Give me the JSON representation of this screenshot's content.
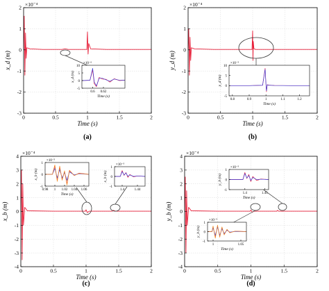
{
  "figure": {
    "colors": {
      "axis": "#000000",
      "grid": "#d9d9d9",
      "series_red": "#e8203a",
      "series_blue": "#3a3ad8",
      "series_orange": "#f08a24",
      "ellipse": "#333333"
    }
  },
  "chart_data": [
    {
      "type": "line",
      "panel_label": "(a)",
      "title": "",
      "xlabel": "Time (s)",
      "ylabel": "x_d (m)",
      "exponent": "×10⁻⁴",
      "xlim": [
        0,
        2
      ],
      "ylim": [
        -3,
        2
      ],
      "xticks": [
        "0",
        "0.5",
        "1",
        "1.5",
        "2"
      ],
      "yticks": [
        "-3",
        "-2",
        "-1",
        "0",
        "1",
        "2"
      ],
      "grid": true,
      "series": [
        {
          "color": "red",
          "x": [
            0,
            0.01,
            0.02,
            0.03,
            0.04,
            0.05,
            0.1,
            0.3,
            0.6,
            0.65,
            0.7,
            0.99,
            1.0,
            1.01,
            1.02,
            1.05,
            1.3,
            1.5,
            1.8,
            2.0
          ],
          "y": [
            0,
            1.6,
            -1.2,
            0.8,
            -0.4,
            0.1,
            0.05,
            0.02,
            0.02,
            0.05,
            0.02,
            0.02,
            0.85,
            -0.2,
            0.3,
            0.05,
            0.02,
            0.02,
            0.02,
            0.02
          ]
        }
      ],
      "inset": {
        "exponent": "×10⁻⁶",
        "ylabel": "x_d (m)",
        "xlabel": "Time (s)",
        "xlim": [
          0.58,
          0.66
        ],
        "ylim": [
          -5,
          10
        ],
        "xticks": [
          "0.6",
          "0.62"
        ],
        "yticks": [
          "-5",
          "0",
          "5",
          "10"
        ],
        "series": [
          {
            "color": "red",
            "x": [
              0.58,
              0.595,
              0.6,
              0.603,
              0.607,
              0.612,
              0.618,
              0.625,
              0.632,
              0.64,
              0.65,
              0.66
            ],
            "y": [
              0,
              0.2,
              7,
              -2,
              -4,
              2,
              1,
              0.8,
              -1,
              1.2,
              0,
              0.3
            ]
          },
          {
            "color": "blue",
            "x": [
              0.58,
              0.595,
              0.6,
              0.603,
              0.607,
              0.612,
              0.618,
              0.625,
              0.632,
              0.64,
              0.65,
              0.66
            ],
            "y": [
              0,
              0.2,
              8,
              -1,
              -3.5,
              1.5,
              1.5,
              0.5,
              -0.5,
              1,
              0.2,
              0.3
            ]
          }
        ]
      }
    },
    {
      "type": "line",
      "panel_label": "(b)",
      "title": "",
      "xlabel": "Time (s)",
      "ylabel": "y_d (m)",
      "exponent": "×10⁻⁴",
      "xlim": [
        0,
        2
      ],
      "ylim": [
        -3,
        2
      ],
      "xticks": [
        "0",
        "0.5",
        "1",
        "1.5",
        "2"
      ],
      "yticks": [
        "-3",
        "-2",
        "-1",
        "0",
        "1",
        "2"
      ],
      "grid": true,
      "series": [
        {
          "color": "red",
          "x": [
            0,
            0.01,
            0.02,
            0.03,
            0.04,
            0.05,
            0.1,
            0.4,
            0.8,
            0.99,
            1.0,
            1.005,
            1.01,
            1.02,
            1.05,
            1.3,
            1.7,
            2.0
          ],
          "y": [
            0,
            1.0,
            -1.2,
            0.6,
            -0.5,
            0.1,
            0.05,
            0.02,
            0.02,
            0.02,
            0.9,
            -0.5,
            0.4,
            0.05,
            0.02,
            0.02,
            0.02,
            0.02
          ]
        }
      ],
      "inset": {
        "exponent": "×10⁻⁵",
        "ylabel": "y_d (m)",
        "xlabel": "Time (s)",
        "xlim": [
          0.78,
          1.26
        ],
        "ylim": [
          -5,
          10
        ],
        "xticks": [
          "0.8",
          "0.9",
          "1",
          "1.1",
          "1.2"
        ],
        "yticks": [
          "-5",
          "0",
          "5",
          "10"
        ],
        "series": [
          {
            "color": "red",
            "x": [
              0.78,
              0.9,
              0.98,
              0.995,
              1.0,
              1.003,
              1.008,
              1.015,
              1.05,
              1.15,
              1.26
            ],
            "y": [
              0,
              0,
              0.2,
              8.5,
              1,
              -3,
              0.5,
              0.3,
              0.1,
              0,
              0
            ]
          },
          {
            "color": "blue",
            "x": [
              0.78,
              0.9,
              0.98,
              0.995,
              1.0,
              1.003,
              1.008,
              1.015,
              1.05,
              1.15,
              1.26
            ],
            "y": [
              0,
              0,
              0.2,
              8,
              0.8,
              -2.5,
              0.4,
              0.2,
              0.1,
              0,
              0
            ]
          }
        ]
      }
    },
    {
      "type": "line",
      "panel_label": "(c)",
      "title": "",
      "xlabel": "Time (s)",
      "ylabel": "x_b (m)",
      "exponent": "×10⁻⁴",
      "xlim": [
        0,
        2
      ],
      "ylim": [
        -4,
        4
      ],
      "xticks": [
        "0",
        "0.5",
        "1",
        "1.5",
        "2"
      ],
      "yticks": [
        "-4",
        "-3",
        "-2",
        "-1",
        "0",
        "1",
        "2",
        "3",
        "4"
      ],
      "grid": true,
      "series": [
        {
          "color": "red",
          "x": [
            0,
            0.01,
            0.02,
            0.03,
            0.04,
            0.06,
            0.1,
            0.5,
            0.99,
            1.0,
            1.02,
            1.05,
            1.2,
            1.4,
            1.42,
            1.45,
            1.7,
            2.0
          ],
          "y": [
            0,
            3.0,
            -3.5,
            2.0,
            -1.0,
            0.3,
            0.05,
            0.02,
            0.02,
            0.12,
            -0.08,
            0.02,
            0.02,
            0.02,
            0.08,
            0.02,
            0.02,
            0.02
          ]
        }
      ],
      "inset": {
        "exponent": "×10⁻⁵",
        "ylabel": "x_b (m)",
        "xlabel": "Time (s)",
        "xlim": [
          0.98,
          1.07
        ],
        "ylim": [
          -1,
          1
        ],
        "xticks": [
          "0.98",
          "1",
          "1.02",
          "1.04",
          "1.06"
        ],
        "yticks": [
          "-1",
          "0",
          "1"
        ],
        "series": [
          {
            "color": "red",
            "x": [
              0.98,
              0.995,
              1.0,
              1.005,
              1.01,
              1.015,
              1.02,
              1.025,
              1.03,
              1.04,
              1.05,
              1.07
            ],
            "y": [
              0,
              0,
              0.7,
              -0.5,
              0.6,
              -0.4,
              0.2,
              -0.8,
              0.3,
              -0.1,
              0.1,
              0
            ]
          },
          {
            "color": "blue",
            "x": [
              0.98,
              0.995,
              1.0,
              1.005,
              1.01,
              1.015,
              1.02,
              1.025,
              1.03,
              1.04,
              1.05,
              1.07
            ],
            "y": [
              0,
              0,
              0.5,
              -0.3,
              0.4,
              -0.3,
              0.15,
              -0.5,
              0.2,
              -0.05,
              0.05,
              0
            ]
          },
          {
            "color": "orange",
            "x": [
              0.98,
              0.995,
              1.0,
              1.005,
              1.01,
              1.015,
              1.02,
              1.025,
              1.03,
              1.04,
              1.05,
              1.07
            ],
            "y": [
              0,
              0,
              0.8,
              -0.6,
              0.7,
              -0.5,
              0.3,
              -0.9,
              0.35,
              -0.1,
              0.08,
              0
            ]
          }
        ]
      },
      "inset2": {
        "exponent": "×10⁻⁵",
        "ylabel": "x_b (m)",
        "xlabel": "",
        "xlim": [
          1.38,
          1.46
        ],
        "ylim": [
          -1,
          1
        ],
        "xticks": [
          "1.4",
          "1.44"
        ],
        "yticks": [
          "-1",
          "0",
          "1"
        ],
        "series": [
          {
            "color": "red",
            "x": [
              1.38,
              1.395,
              1.4,
              1.405,
              1.41,
              1.415,
              1.42,
              1.43,
              1.44,
              1.46
            ],
            "y": [
              0,
              0,
              0.6,
              0.1,
              0.4,
              -0.1,
              0.2,
              -0.05,
              0.05,
              0
            ]
          },
          {
            "color": "blue",
            "x": [
              1.38,
              1.395,
              1.4,
              1.405,
              1.41,
              1.415,
              1.42,
              1.43,
              1.44,
              1.46
            ],
            "y": [
              0,
              0,
              0.5,
              0.15,
              0.35,
              0,
              0.15,
              0,
              0.05,
              0
            ]
          }
        ]
      }
    },
    {
      "type": "line",
      "panel_label": "(d)",
      "title": "",
      "xlabel": "Time (s)",
      "ylabel": "y_b (m)",
      "exponent": "×10⁻⁴",
      "xlim": [
        0,
        2
      ],
      "ylim": [
        -4,
        4
      ],
      "xticks": [
        "0",
        "0.5",
        "1",
        "1.5",
        "2"
      ],
      "yticks": [
        "-4",
        "-3",
        "-2",
        "-1",
        "0",
        "1",
        "2",
        "3",
        "4"
      ],
      "grid": true,
      "series": [
        {
          "color": "red",
          "x": [
            0,
            0.01,
            0.02,
            0.03,
            0.04,
            0.06,
            0.1,
            0.5,
            0.99,
            1.0,
            1.02,
            1.05,
            1.2,
            1.39,
            1.4,
            1.42,
            1.7,
            2.0
          ],
          "y": [
            0,
            2.5,
            -3.0,
            1.5,
            -1.0,
            0.3,
            0.05,
            0.02,
            0.02,
            0.1,
            -0.05,
            0.02,
            0.02,
            0.02,
            0.08,
            0.02,
            0.02,
            0.02
          ]
        }
      ],
      "inset": {
        "exponent": "×10⁻⁵",
        "ylabel": "y_b (m)",
        "xlabel": "Time (s)",
        "xlim": [
          1.36,
          1.46
        ],
        "ylim": [
          -1,
          1
        ],
        "xticks": [
          "1.4",
          "1.45"
        ],
        "yticks": [
          "-1",
          "0",
          "1"
        ],
        "series": [
          {
            "color": "red",
            "x": [
              1.36,
              1.395,
              1.4,
              1.405,
              1.41,
              1.415,
              1.42,
              1.43,
              1.44,
              1.46
            ],
            "y": [
              0,
              0,
              0.7,
              0.1,
              0.5,
              -0.2,
              0.3,
              -0.1,
              0.05,
              0
            ]
          },
          {
            "color": "blue",
            "x": [
              1.36,
              1.395,
              1.4,
              1.405,
              1.41,
              1.415,
              1.42,
              1.43,
              1.44,
              1.46
            ],
            "y": [
              0,
              0,
              0.6,
              0.15,
              0.4,
              -0.1,
              0.2,
              0,
              0.03,
              0
            ]
          }
        ]
      },
      "inset2": {
        "exponent": "×10⁻⁵",
        "ylabel": "y_b (m)",
        "xlabel": "Time (s)",
        "xlim": [
          0.99,
          1.06
        ],
        "ylim": [
          -1,
          1
        ],
        "xticks": [
          "1",
          "1.05"
        ],
        "yticks": [
          "-1",
          "0",
          "1"
        ],
        "series": [
          {
            "color": "red",
            "x": [
              0.99,
              0.998,
              1.0,
              1.004,
              1.008,
              1.012,
              1.016,
              1.02,
              1.025,
              1.03,
              1.04,
              1.06
            ],
            "y": [
              0,
              0,
              0.5,
              -0.6,
              0.6,
              -0.5,
              0.4,
              -0.3,
              0.2,
              -0.1,
              0.05,
              0
            ]
          },
          {
            "color": "blue",
            "x": [
              0.99,
              0.998,
              1.0,
              1.004,
              1.008,
              1.012,
              1.016,
              1.02,
              1.025,
              1.03,
              1.04,
              1.06
            ],
            "y": [
              0,
              0,
              0.4,
              -0.4,
              0.5,
              -0.4,
              0.3,
              -0.2,
              0.15,
              -0.05,
              0.02,
              0
            ]
          },
          {
            "color": "orange",
            "x": [
              0.99,
              0.998,
              1.0,
              1.004,
              1.008,
              1.012,
              1.016,
              1.02,
              1.025,
              1.03,
              1.04,
              1.06
            ],
            "y": [
              0,
              0,
              0.6,
              -0.7,
              0.7,
              -0.6,
              0.5,
              -0.35,
              0.25,
              -0.12,
              0.05,
              0
            ]
          }
        ]
      }
    }
  ]
}
